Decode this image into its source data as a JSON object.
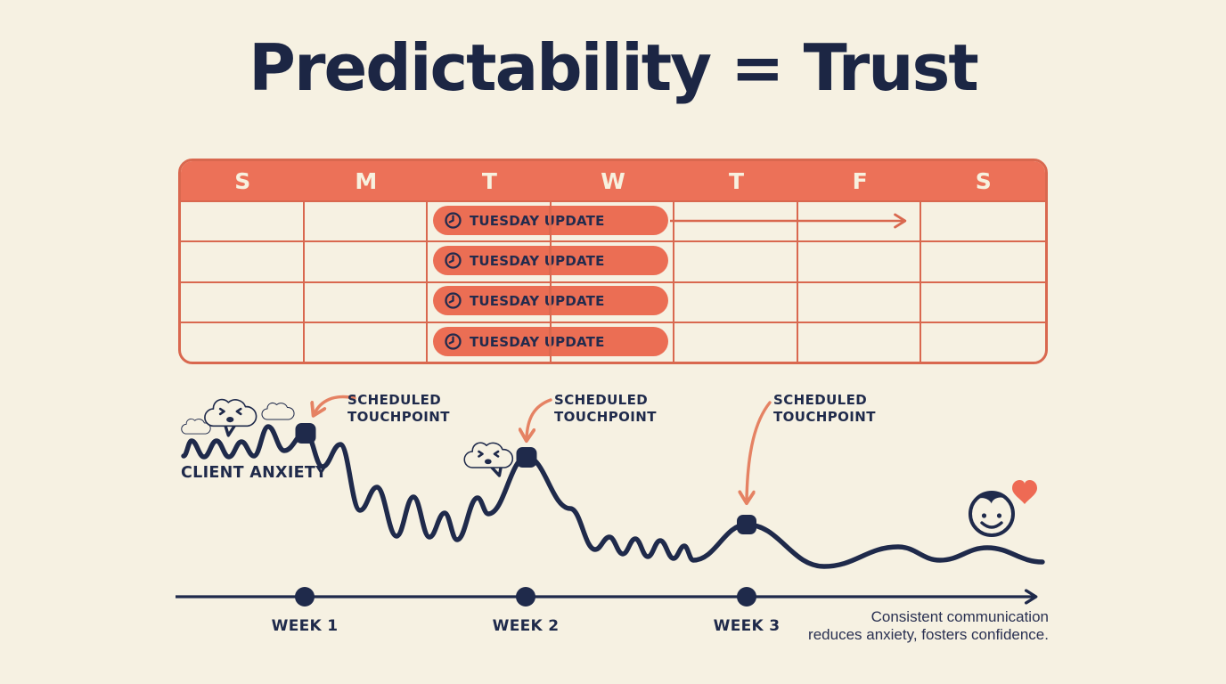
{
  "title": "Predictability = Trust",
  "colors": {
    "background": "#F6F1E2",
    "navy": "#1F2A4B",
    "coral": "#EC7158",
    "coral_border": "#D9684F",
    "salmon_arrow": "#E58263",
    "heart_red": "#EE6A54",
    "header_text": "#F7F1DF"
  },
  "calendar": {
    "day_headers": [
      "S",
      "M",
      "T",
      "W",
      "T",
      "F",
      "S"
    ],
    "rows": [
      {
        "event": "TUESDAY UPDATE",
        "icon": "clock-icon",
        "recurrence_arrow": true
      },
      {
        "event": "TUESDAY UPDATE",
        "icon": "clock-icon",
        "recurrence_arrow": false
      },
      {
        "event": "TUESDAY UPDATE",
        "icon": "clock-icon",
        "recurrence_arrow": false
      },
      {
        "event": "TUESDAY UPDATE",
        "icon": "clock-icon",
        "recurrence_arrow": false
      }
    ]
  },
  "diagram": {
    "curve_label": "CLIENT ANXIETY",
    "touchpoints": [
      {
        "line1": "SCHEDULED",
        "line2": "TOUCHPOINT",
        "week": "WEEK 1"
      },
      {
        "line1": "SCHEDULED",
        "line2": "TOUCHPOINT",
        "week": "WEEK 2"
      },
      {
        "line1": "SCHEDULED",
        "line2": "TOUCHPOINT",
        "week": "WEEK 3"
      }
    ],
    "weeks": [
      "WEEK 1",
      "WEEK 2",
      "WEEK 3"
    ],
    "caption": {
      "line1": "Consistent communication",
      "line2": "reduces anxiety, fosters confidence."
    },
    "icons": [
      "anxious-cloud-icon",
      "anxious-cloud-icon",
      "happy-face-icon",
      "heart-icon"
    ]
  }
}
